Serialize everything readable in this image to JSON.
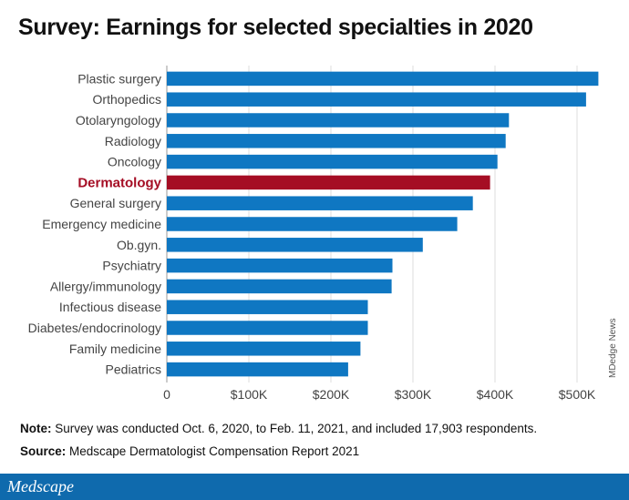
{
  "title": "Survey: Earnings for selected specialties in 2020",
  "credit": "MDedge News",
  "notes": {
    "note_label": "Note:",
    "note_text": " Survey was conducted Oct. 6, 2020, to Feb. 11, 2021, and included 17,903 respondents.",
    "source_label": "Source:",
    "source_text": " Medscape Dermatologist Compensation Report 2021"
  },
  "brand": "Medscape",
  "colors": {
    "bar": "#0f77c2",
    "highlight": "#a50d24",
    "footer": "#0f6aad"
  },
  "chart_data": {
    "type": "bar",
    "orientation": "horizontal",
    "title": "Survey: Earnings for selected specialties in 2020",
    "xlabel": "",
    "ylabel": "",
    "categories": [
      "Plastic surgery",
      "Orthopedics",
      "Otolaryngology",
      "Radiology",
      "Oncology",
      "Dermatology",
      "General surgery",
      "Emergency medicine",
      "Ob.gyn.",
      "Psychiatry",
      "Allergy/immunology",
      "Infectious disease",
      "Diabetes/endocrinology",
      "Family medicine",
      "Pediatrics"
    ],
    "values": [
      526000,
      511000,
      417000,
      413000,
      403000,
      394000,
      373000,
      354000,
      312000,
      275000,
      274000,
      245000,
      245000,
      236000,
      221000
    ],
    "highlight": "Dermatology",
    "xlim": [
      0,
      530000
    ],
    "xticks": [
      0,
      100000,
      200000,
      300000,
      400000,
      500000
    ],
    "xtick_labels": [
      "0",
      "$100K",
      "$200K",
      "$300K",
      "$400K",
      "$500K"
    ],
    "grid": true
  }
}
